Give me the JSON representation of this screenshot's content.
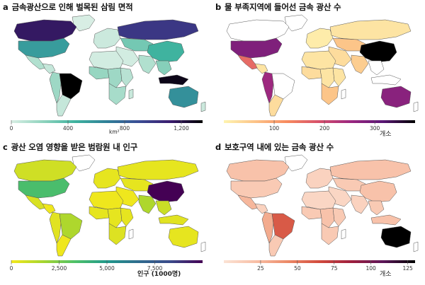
{
  "chart_data": [
    {
      "id": "a",
      "type": "heatmap",
      "panel_letter": "a",
      "title": "금속광산으로 인해 벌목된 삼림 면적",
      "colorbar": {
        "colors": [
          "#d8eee4",
          "#8fd3bd",
          "#3fb39f",
          "#2f7f98",
          "#3b4d95",
          "#3b1c6e",
          "#000000"
        ],
        "ticks": [
          0,
          400,
          800,
          1200
        ],
        "tick_labels": [
          "0",
          "400",
          "800",
          "1,200"
        ],
        "range": [
          0,
          1350
        ],
        "unit": "km²"
      },
      "regions": {
        "canada": 1150,
        "usa": 550,
        "mexico": 120,
        "central_america": 60,
        "brazil": 1350,
        "south_america_west": 180,
        "south_america_south": 60,
        "greenland": 0,
        "europe": 40,
        "russia": 1000,
        "central_asia": 300,
        "china": 450,
        "middle_east": 20,
        "india": 120,
        "southeast_asia": 250,
        "indonesia": 1300,
        "north_africa": 20,
        "west_africa": 200,
        "central_africa": 180,
        "east_africa": 100,
        "southern_africa": 150,
        "australia": 600,
        "madagascar": 50,
        "nz": 40
      }
    },
    {
      "id": "b",
      "type": "heatmap",
      "panel_letter": "b",
      "title": "물 부족지역에 들어선 금속 광산 수",
      "colorbar": {
        "colors": [
          "#fef4b0",
          "#fcc287",
          "#f78a5e",
          "#d64f6b",
          "#9a2680",
          "#5a1775",
          "#000000"
        ],
        "ticks": [
          100,
          200,
          300
        ],
        "tick_labels": [
          "100",
          "200",
          "300"
        ],
        "range": [
          0,
          380
        ],
        "unit": "개소"
      },
      "regions": {
        "canada": null,
        "usa": 280,
        "mexico": 160,
        "central_america": 20,
        "brazil": null,
        "south_america_west": 250,
        "south_america_south": 30,
        "greenland": null,
        "europe": 10,
        "russia": 20,
        "central_asia": 60,
        "china": 380,
        "middle_east": 30,
        "india": 50,
        "southeast_asia": null,
        "indonesia": null,
        "north_africa": 20,
        "west_africa": 30,
        "central_africa": 20,
        "east_africa": 20,
        "southern_africa": 60,
        "australia": 270,
        "madagascar": null,
        "nz": null
      }
    },
    {
      "id": "c",
      "type": "heatmap",
      "panel_letter": "c",
      "title": "광산 오염 영향을 받은 범람원 내 인구",
      "colorbar": {
        "colors": [
          "#f4e81c",
          "#a6d52f",
          "#4ec169",
          "#21998b",
          "#2f6b8e",
          "#3b4a8a",
          "#440154"
        ],
        "ticks": [
          0,
          2500,
          5000,
          7500
        ],
        "tick_labels": [
          "0",
          "2,500",
          "5,000",
          "7,500"
        ],
        "range": [
          0,
          10000
        ],
        "unit": "인구 (1000명)"
      },
      "regions": {
        "canada": 800,
        "usa": 3500,
        "mexico": 600,
        "central_america": 100,
        "brazil": 1500,
        "south_america_west": 400,
        "south_america_south": 100,
        "greenland": null,
        "europe": 300,
        "russia": 300,
        "central_asia": 300,
        "china": 10000,
        "middle_east": 100,
        "india": 1500,
        "southeast_asia": 900,
        "indonesia": 400,
        "north_africa": 100,
        "west_africa": 300,
        "central_africa": 300,
        "east_africa": 300,
        "southern_africa": 500,
        "australia": 300,
        "madagascar": null,
        "nz": null
      }
    },
    {
      "id": "d",
      "type": "heatmap",
      "panel_letter": "d",
      "title": "보호구역 내에 있는 금속 광산 수",
      "colorbar": {
        "colors": [
          "#fbe3d5",
          "#f8bfa6",
          "#ec8a67",
          "#d24b3d",
          "#9e1f3e",
          "#5c1659",
          "#000000"
        ],
        "ticks": [
          25,
          50,
          75,
          100,
          125
        ],
        "tick_labels": [
          "25",
          "50",
          "75",
          "100",
          "125"
        ],
        "range": [
          0,
          130
        ],
        "unit": "개소"
      },
      "regions": {
        "canada": 20,
        "usa": 15,
        "mexico": 25,
        "central_america": 10,
        "brazil": 60,
        "south_america_west": 30,
        "south_america_south": 15,
        "greenland": null,
        "europe": 10,
        "russia": 20,
        "central_asia": 15,
        "china": 20,
        "middle_east": 8,
        "india": 10,
        "southeast_asia": 15,
        "indonesia": 20,
        "north_africa": 8,
        "west_africa": 15,
        "central_africa": 20,
        "east_africa": 15,
        "southern_africa": 15,
        "australia": 130,
        "madagascar": null,
        "nz": null
      }
    }
  ]
}
